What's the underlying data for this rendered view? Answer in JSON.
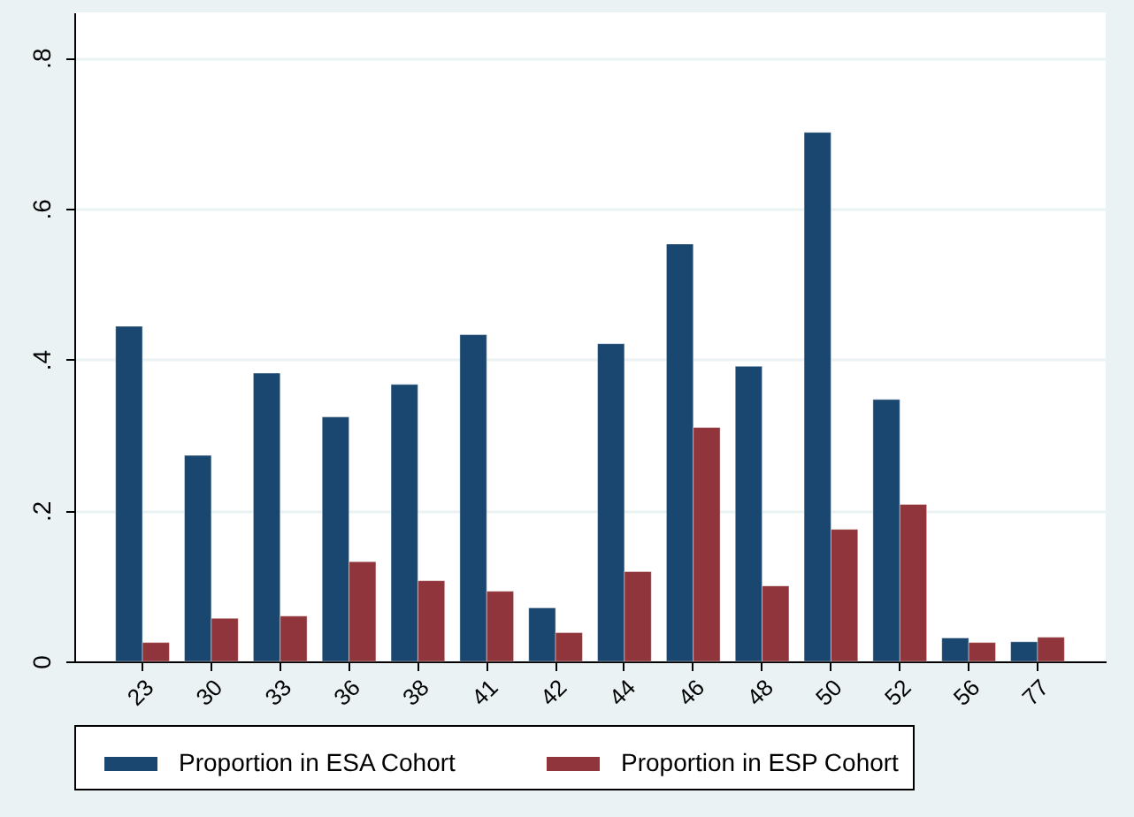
{
  "chart_data": {
    "type": "bar",
    "categories": [
      "23",
      "30",
      "33",
      "36",
      "38",
      "41",
      "42",
      "44",
      "46",
      "48",
      "50",
      "52",
      "56",
      "77"
    ],
    "series": [
      {
        "name": "Proportion in ESA Cohort",
        "color": "#1a476f",
        "values": [
          0.444,
          0.273,
          0.382,
          0.324,
          0.367,
          0.433,
          0.071,
          0.421,
          0.553,
          0.391,
          0.701,
          0.347,
          0.031,
          0.026
        ]
      },
      {
        "name": "Proportion in ESP Cohort",
        "color": "#90353b",
        "values": [
          0.025,
          0.057,
          0.06,
          0.132,
          0.107,
          0.093,
          0.038,
          0.119,
          0.31,
          0.1,
          0.175,
          0.208,
          0.025,
          0.032
        ]
      }
    ],
    "ylim": [
      0,
      0.86
    ],
    "yticks": [
      0,
      {
        "value": 0.2,
        "label": ".2"
      },
      {
        "value": 0.4,
        "label": ".4"
      },
      {
        "value": 0.6,
        "label": ".6"
      },
      {
        "value": 0.8,
        "label": ".8"
      }
    ],
    "grid": "y",
    "legend": "bottom"
  }
}
